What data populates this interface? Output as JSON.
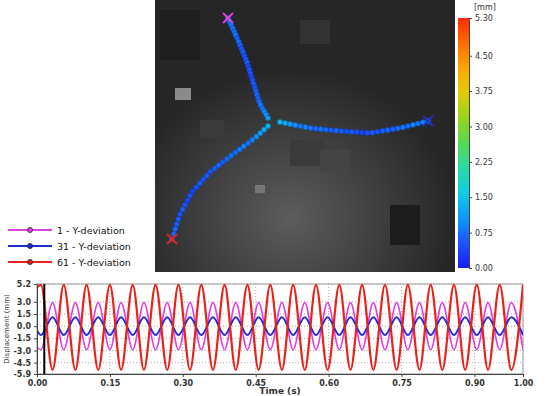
{
  "chart_data": [
    {
      "type": "line",
      "xlabel": "Time (s)",
      "ylabel": "Displacement (mm)",
      "x": [
        0,
        0.008,
        0.032,
        0.055,
        0.079,
        0.102,
        0.126,
        0.15,
        0.173,
        0.197,
        0.22,
        0.244,
        0.268,
        0.291,
        0.315,
        0.338,
        0.362,
        0.386,
        0.409,
        0.433,
        0.456,
        0.48,
        0.504,
        0.527,
        0.551,
        0.574,
        0.598,
        0.622,
        0.645,
        0.669,
        0.692,
        0.716,
        0.74,
        0.763,
        0.787,
        0.81,
        0.834,
        0.858,
        0.881,
        0.905,
        0.928,
        0.952,
        0.976,
        1
      ],
      "series": [
        {
          "name": "1 - Y-deviation",
          "color": "#e040e0",
          "values": [
            -2.6,
            -2.9,
            2.9,
            -2.9,
            2.9,
            -2.9,
            2.9,
            -2.9,
            2.9,
            -2.9,
            2.9,
            -2.9,
            2.9,
            -2.9,
            2.9,
            -2.9,
            2.9,
            -2.9,
            2.9,
            -2.9,
            2.9,
            -2.9,
            2.9,
            -2.9,
            2.9,
            -2.9,
            2.9,
            -2.9,
            2.9,
            -2.9,
            2.9,
            -2.9,
            2.9,
            -2.9,
            2.9,
            -2.9,
            2.9,
            -2.9,
            2.9,
            -2.9,
            2.9,
            -2.9,
            2.9,
            -2.9
          ]
        },
        {
          "name": "31 - Y-deviation",
          "color": "#1f2fd0",
          "values": [
            -0.5,
            -1.1,
            1.1,
            -1.1,
            1.1,
            -1.1,
            1.1,
            -1.1,
            1.1,
            -1.1,
            1.1,
            -1.1,
            1.1,
            -1.1,
            1.1,
            -1.1,
            1.1,
            -1.1,
            1.1,
            -1.1,
            1.1,
            -1.1,
            1.1,
            -1.1,
            1.1,
            -1.1,
            1.1,
            -1.1,
            1.1,
            -1.1,
            1.1,
            -1.1,
            1.1,
            -1.1,
            1.1,
            -1.1,
            1.1,
            -1.1,
            1.1,
            -1.1,
            1.1,
            -1.1,
            1.1,
            -1.1
          ]
        },
        {
          "name": "61 - Y-deviation",
          "color": "#e8231a",
          "values": [
            4.8,
            5.1,
            -5.4,
            5.1,
            -5.4,
            5.1,
            -5.4,
            5.1,
            -5.4,
            5.1,
            -5.4,
            5.1,
            -5.4,
            5.1,
            -5.4,
            5.1,
            -5.4,
            5.1,
            -5.4,
            5.1,
            -5.4,
            5.1,
            -5.4,
            5.1,
            -5.4,
            5.1,
            -5.4,
            5.1,
            -5.4,
            5.1,
            -5.4,
            5.1,
            -5.4,
            5.1,
            -5.4,
            5.1,
            -5.4,
            5.1,
            -5.4,
            5.1,
            -5.4,
            5.1,
            -5.4,
            5.1
          ]
        }
      ],
      "xlim": [
        0,
        1
      ],
      "ylim": [
        -5.9,
        5.2
      ],
      "xticks": [
        {
          "value": 0,
          "label": "0.00"
        },
        0.15,
        {
          "value": 0.3,
          "label": "0.30"
        },
        0.45,
        {
          "value": 0.6,
          "label": "0.60"
        },
        0.75,
        {
          "value": 0.9,
          "label": "0.90"
        },
        {
          "value": 1,
          "label": "1.00"
        }
      ],
      "yticks": [
        5.2,
        {
          "value": 3,
          "label": "3.0"
        },
        1.5,
        {
          "value": 0,
          "label": "0.0"
        },
        -1.5,
        {
          "value": -3,
          "label": "-3.0"
        },
        -4.5,
        -5.9
      ],
      "grid": true,
      "legend": "top-left",
      "cursor": 0.015
    },
    {
      "type": "points",
      "values": [
        0.9,
        0.8,
        0.8,
        0.7,
        0.7,
        0.8,
        0.6,
        0.7,
        0.6,
        0.5,
        0.6,
        0.5,
        0.5,
        0.6,
        0.4,
        0.5,
        0.5,
        0.4,
        0.5,
        0.6,
        0.5,
        0.6,
        0.7,
        0.6,
        0.7,
        0.8,
        0.7,
        0.9,
        1.0,
        1.1,
        1.0,
        0.9,
        0.8,
        0.9,
        0.7,
        0.8,
        0.7,
        0.6,
        0.7,
        0.6,
        0.5,
        0.6,
        0.5,
        0.4,
        0.5,
        0.6,
        0.5,
        0.6,
        0.7,
        0.6,
        0.7,
        0.8,
        0.7,
        0.8,
        0.9,
        0.8,
        1.0,
        1.1,
        1.2,
        1.3,
        0.8,
        0.7,
        0.7,
        0.6,
        0.6,
        0.5,
        0.6,
        0.5,
        0.4,
        0.5,
        0.4,
        0.5,
        0.6,
        0.5,
        0.6,
        0.5,
        0.6,
        0.7,
        0.6,
        0.7,
        0.8,
        0.7,
        0.8,
        0.9,
        0.8,
        0.9,
        1.0,
        1.1,
        1.2,
        1.3
      ],
      "marked_points": [
        1,
        31,
        61
      ],
      "colorbar": {
        "label": "[mm]",
        "range": [
          0,
          5.3
        ],
        "ticks": [
          {
            "value": 5.3,
            "label": "5.30"
          },
          {
            "value": 4.5,
            "label": "4.50"
          },
          3.75,
          {
            "value": 3,
            "label": "3.00"
          },
          2.25,
          {
            "value": 1.5,
            "label": "1.50"
          },
          0.75,
          {
            "value": 0,
            "label": "0.00"
          }
        ]
      }
    }
  ]
}
